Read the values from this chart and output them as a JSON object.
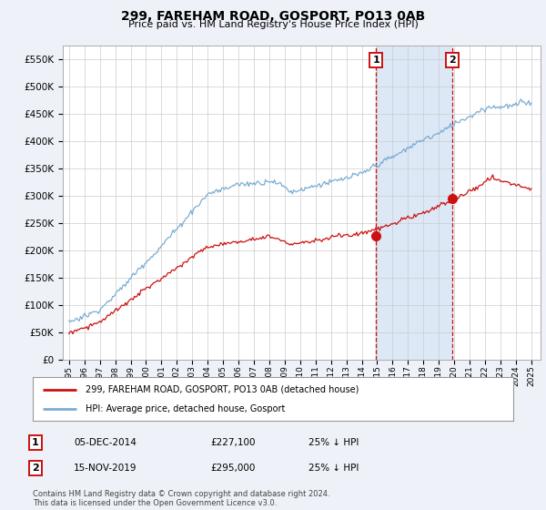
{
  "title": "299, FAREHAM ROAD, GOSPORT, PO13 0AB",
  "subtitle": "Price paid vs. HM Land Registry's House Price Index (HPI)",
  "ytick_values": [
    0,
    50000,
    100000,
    150000,
    200000,
    250000,
    300000,
    350000,
    400000,
    450000,
    500000,
    550000
  ],
  "ylim": [
    0,
    575000
  ],
  "hpi_color": "#7aadd4",
  "price_color": "#cc1111",
  "marker1_year": 2014.92,
  "marker1_price_val": 227100,
  "marker1_date_label": "05-DEC-2014",
  "marker1_price_label": "£227,100",
  "marker1_pct_label": "25% ↓ HPI",
  "marker2_year": 2019.87,
  "marker2_price_val": 295000,
  "marker2_date_label": "15-NOV-2019",
  "marker2_price_label": "£295,000",
  "marker2_pct_label": "25% ↓ HPI",
  "legend_label_red": "299, FAREHAM ROAD, GOSPORT, PO13 0AB (detached house)",
  "legend_label_blue": "HPI: Average price, detached house, Gosport",
  "footer": "Contains HM Land Registry data © Crown copyright and database right 2024.\nThis data is licensed under the Open Government Licence v3.0.",
  "bg_color": "#eef2f8",
  "plot_bg": "#ffffff",
  "grid_color": "#cccccc",
  "vline_color": "#cc1111",
  "shade_color": "#dce8f5",
  "xlim_left": 1994.6,
  "xlim_right": 2025.6
}
